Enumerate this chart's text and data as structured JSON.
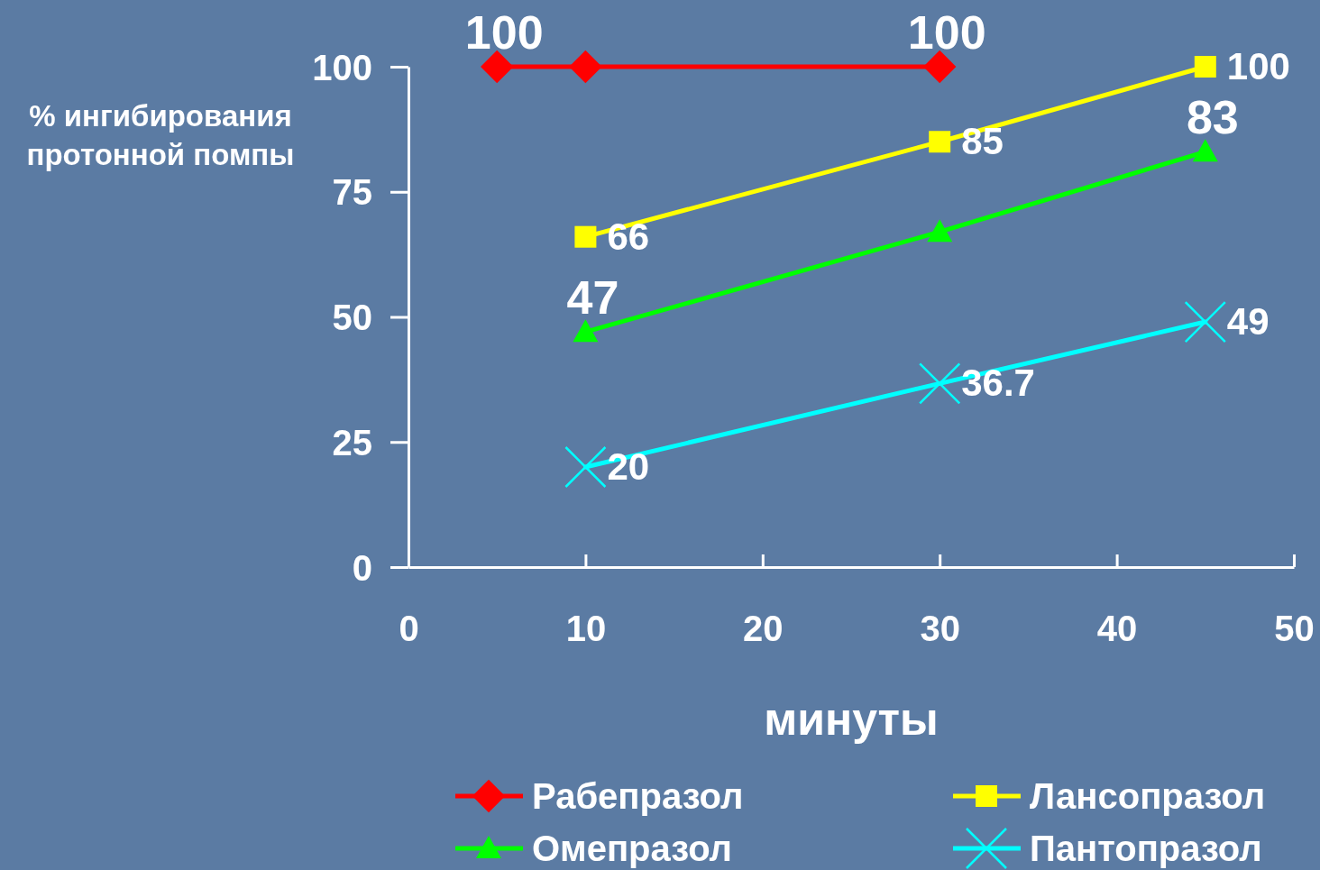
{
  "chart_data": {
    "type": "line",
    "xlabel": "минуты",
    "ylabel": "% ингибирования\nпротонной помпы",
    "xlim": [
      0,
      50
    ],
    "xticks": [
      0,
      10,
      20,
      30,
      40,
      50
    ],
    "ylim": [
      0,
      100
    ],
    "yticks": [
      0,
      25,
      50,
      75,
      100
    ],
    "grid": false,
    "legend": "bottom",
    "series": [
      {
        "name": "Рабепразол",
        "color": "#ff0000",
        "marker": "diamond",
        "x": [
          5,
          10,
          30
        ],
        "values": [
          100,
          100,
          100
        ],
        "value_labels": [
          "100",
          null,
          "100"
        ]
      },
      {
        "name": "Лансопразол",
        "color": "#ffff00",
        "marker": "square",
        "x": [
          10,
          30,
          45
        ],
        "values": [
          66,
          85,
          100
        ],
        "value_labels": [
          "66",
          "85",
          "100"
        ]
      },
      {
        "name": "Омепразол",
        "color": "#00ff00",
        "marker": "triangle",
        "x": [
          10,
          30,
          45
        ],
        "values": [
          47,
          67,
          83
        ],
        "value_labels": [
          "47",
          null,
          "83"
        ]
      },
      {
        "name": "Пантопразол",
        "color": "#00ffff",
        "marker": "cross",
        "x": [
          10,
          30,
          45
        ],
        "values": [
          20,
          36.7,
          49
        ],
        "value_labels": [
          "20",
          "36.7",
          "49"
        ]
      }
    ]
  }
}
